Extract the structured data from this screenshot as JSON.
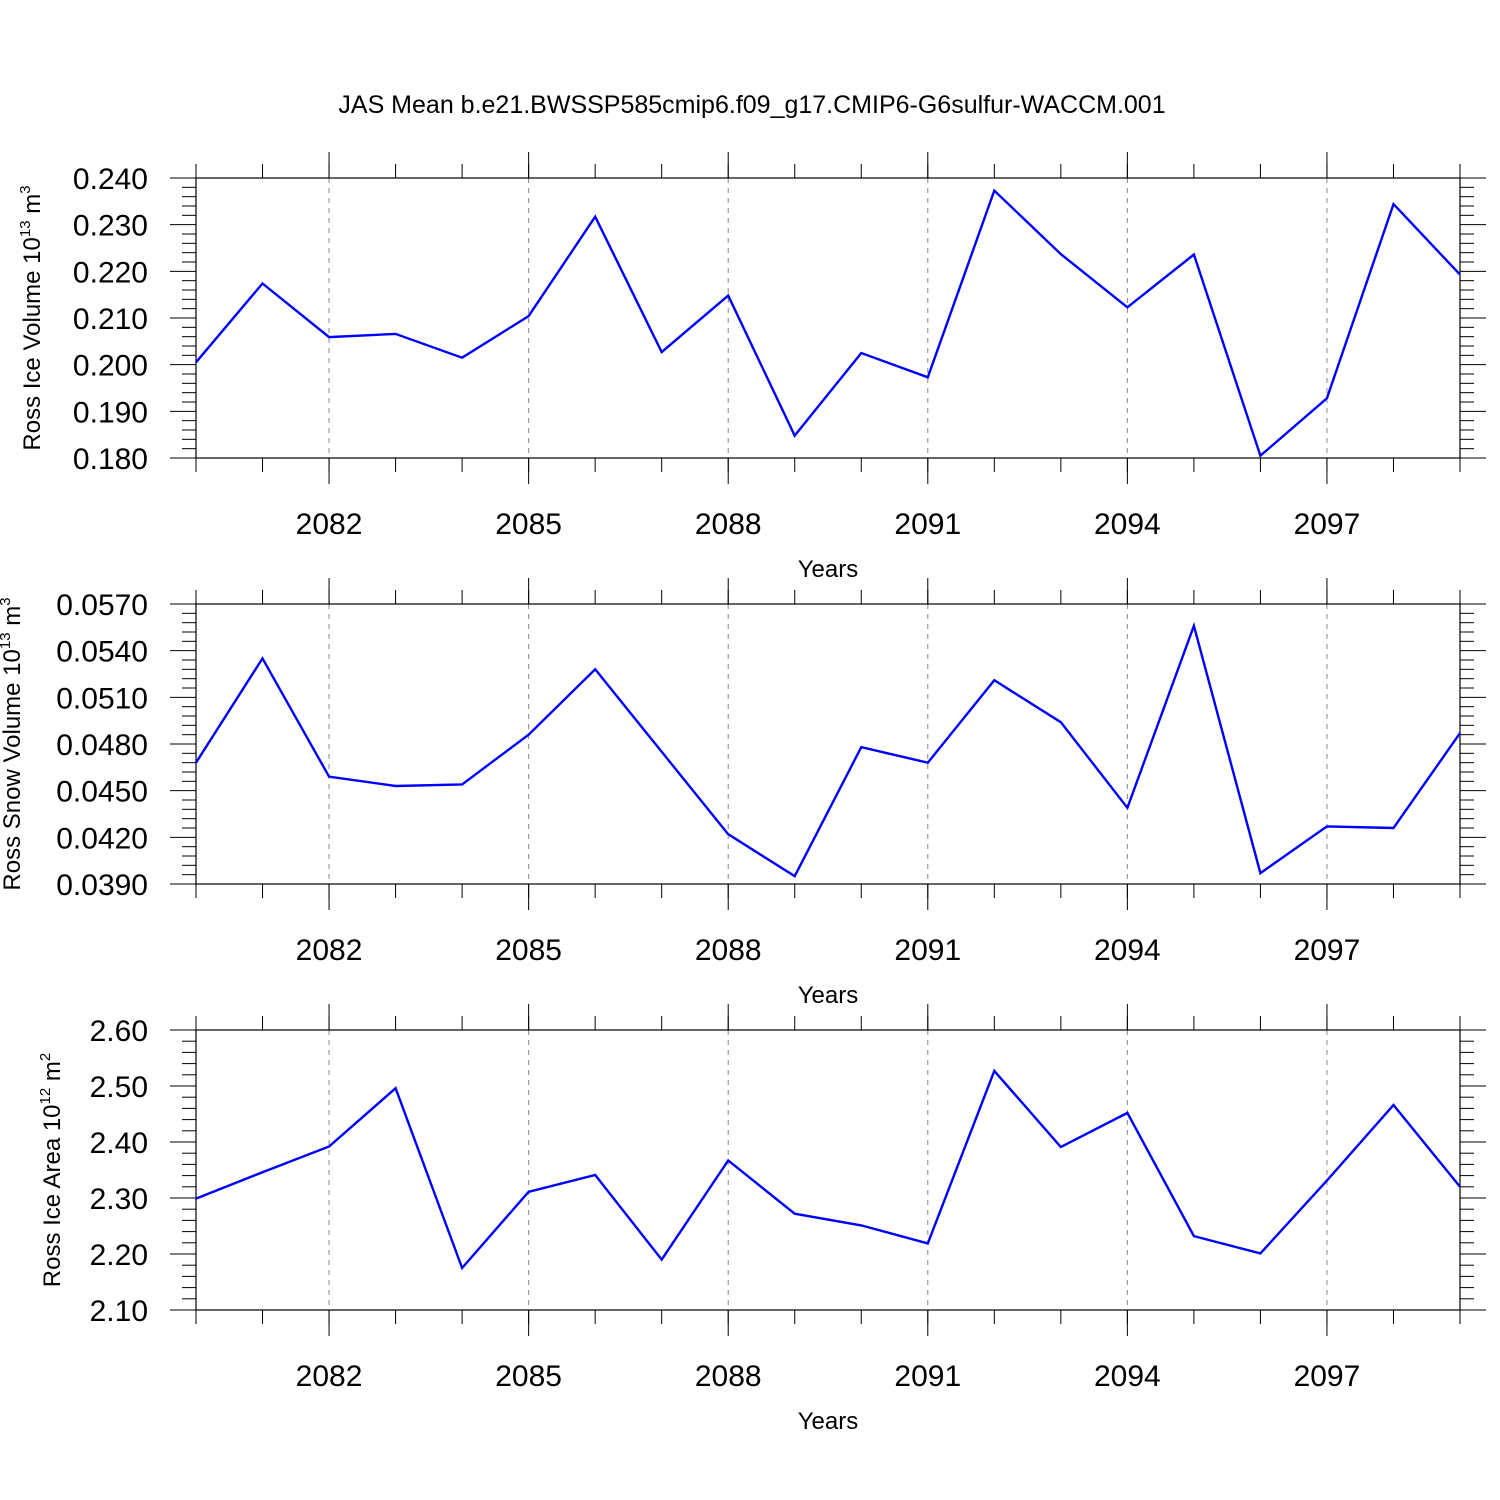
{
  "title": "JAS Mean b.e21.BWSSP585cmip6.f09_g17.CMIP6-G6sulfur-WACCM.001",
  "colors": {
    "series": "#0000ff",
    "axes": "#000000",
    "grid": "#888888"
  },
  "chart_data": [
    {
      "type": "line",
      "xlabel": "Years",
      "ylabel": "Ross Ice Volume 10",
      "ylabel_exp": "13",
      "ylabel_unit": "m",
      "ylabel_unit_exp": "3",
      "ylim": [
        0.18,
        0.24
      ],
      "yticks": [
        "0.180",
        "0.190",
        "0.200",
        "0.210",
        "0.220",
        "0.230",
        "0.240"
      ],
      "xlim": [
        2080,
        2099
      ],
      "xticks": [
        "2082",
        "2085",
        "2088",
        "2091",
        "2094",
        "2097"
      ],
      "grid": "x dashed",
      "series": [
        {
          "x": [
            2080,
            2081,
            2082,
            2083,
            2084,
            2085,
            2086,
            2087,
            2088,
            2089,
            2090,
            2091,
            2092,
            2093,
            2094,
            2095,
            2096,
            2097,
            2098,
            2099
          ],
          "values": [
            0.2005,
            0.2174,
            0.2059,
            0.2066,
            0.2015,
            0.2104,
            0.2317,
            0.2027,
            0.2148,
            0.1848,
            0.2025,
            0.1973,
            0.2373,
            0.2237,
            0.2123,
            0.2236,
            0.1805,
            0.1928,
            0.2344,
            0.2193
          ]
        }
      ]
    },
    {
      "type": "line",
      "xlabel": "Years",
      "ylabel": "Ross Snow Volume 10",
      "ylabel_exp": "13",
      "ylabel_unit": "m",
      "ylabel_unit_exp": "3",
      "ylim": [
        0.039,
        0.057
      ],
      "yticks": [
        "0.0390",
        "0.0420",
        "0.0450",
        "0.0480",
        "0.0510",
        "0.0540",
        "0.0570"
      ],
      "xlim": [
        2080,
        2099
      ],
      "xticks": [
        "2082",
        "2085",
        "2088",
        "2091",
        "2094",
        "2097"
      ],
      "grid": "x dashed",
      "series": [
        {
          "x": [
            2080,
            2081,
            2082,
            2083,
            2084,
            2085,
            2086,
            2087,
            2088,
            2089,
            2090,
            2091,
            2092,
            2093,
            2094,
            2095,
            2096,
            2097,
            2098,
            2099
          ],
          "values": [
            0.0468,
            0.0535,
            0.0459,
            0.0453,
            0.0454,
            0.0486,
            0.0528,
            0.0475,
            0.0422,
            0.0395,
            0.0478,
            0.0468,
            0.0521,
            0.0494,
            0.0439,
            0.0556,
            0.0397,
            0.0427,
            0.0426,
            0.0487
          ]
        }
      ]
    },
    {
      "type": "line",
      "xlabel": "Years",
      "ylabel": "Ross Ice Area 10",
      "ylabel_exp": "12",
      "ylabel_unit": "m",
      "ylabel_unit_exp": "2",
      "ylim": [
        2.1,
        2.6
      ],
      "yticks": [
        "2.10",
        "2.20",
        "2.30",
        "2.40",
        "2.50",
        "2.60"
      ],
      "xlim": [
        2080,
        2099
      ],
      "xticks": [
        "2082",
        "2085",
        "2088",
        "2091",
        "2094",
        "2097"
      ],
      "grid": "x dashed",
      "series": [
        {
          "x": [
            2080,
            2081,
            2082,
            2083,
            2084,
            2085,
            2086,
            2087,
            2088,
            2089,
            2090,
            2091,
            2092,
            2093,
            2094,
            2095,
            2096,
            2097,
            2098,
            2099
          ],
          "values": [
            2.299,
            2.346,
            2.392,
            2.496,
            2.175,
            2.311,
            2.341,
            2.19,
            2.367,
            2.272,
            2.251,
            2.219,
            2.527,
            2.391,
            2.452,
            2.232,
            2.201,
            2.331,
            2.466,
            2.32
          ]
        }
      ]
    }
  ]
}
